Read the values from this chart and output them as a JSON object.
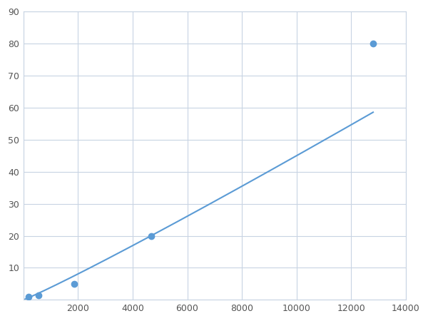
{
  "x": [
    188,
    563,
    1875,
    4688,
    12800
  ],
  "y": [
    1,
    1.5,
    5,
    20,
    80
  ],
  "line_color": "#5b9bd5",
  "marker_color": "#5b9bd5",
  "marker_size": 6,
  "xlim": [
    0,
    14000
  ],
  "ylim": [
    0,
    90
  ],
  "xticks": [
    0,
    2000,
    4000,
    6000,
    8000,
    10000,
    12000,
    14000
  ],
  "yticks": [
    0,
    10,
    20,
    30,
    40,
    50,
    60,
    70,
    80,
    90
  ],
  "grid_color": "#c8d4e3",
  "background_color": "#ffffff",
  "line_width": 1.5
}
